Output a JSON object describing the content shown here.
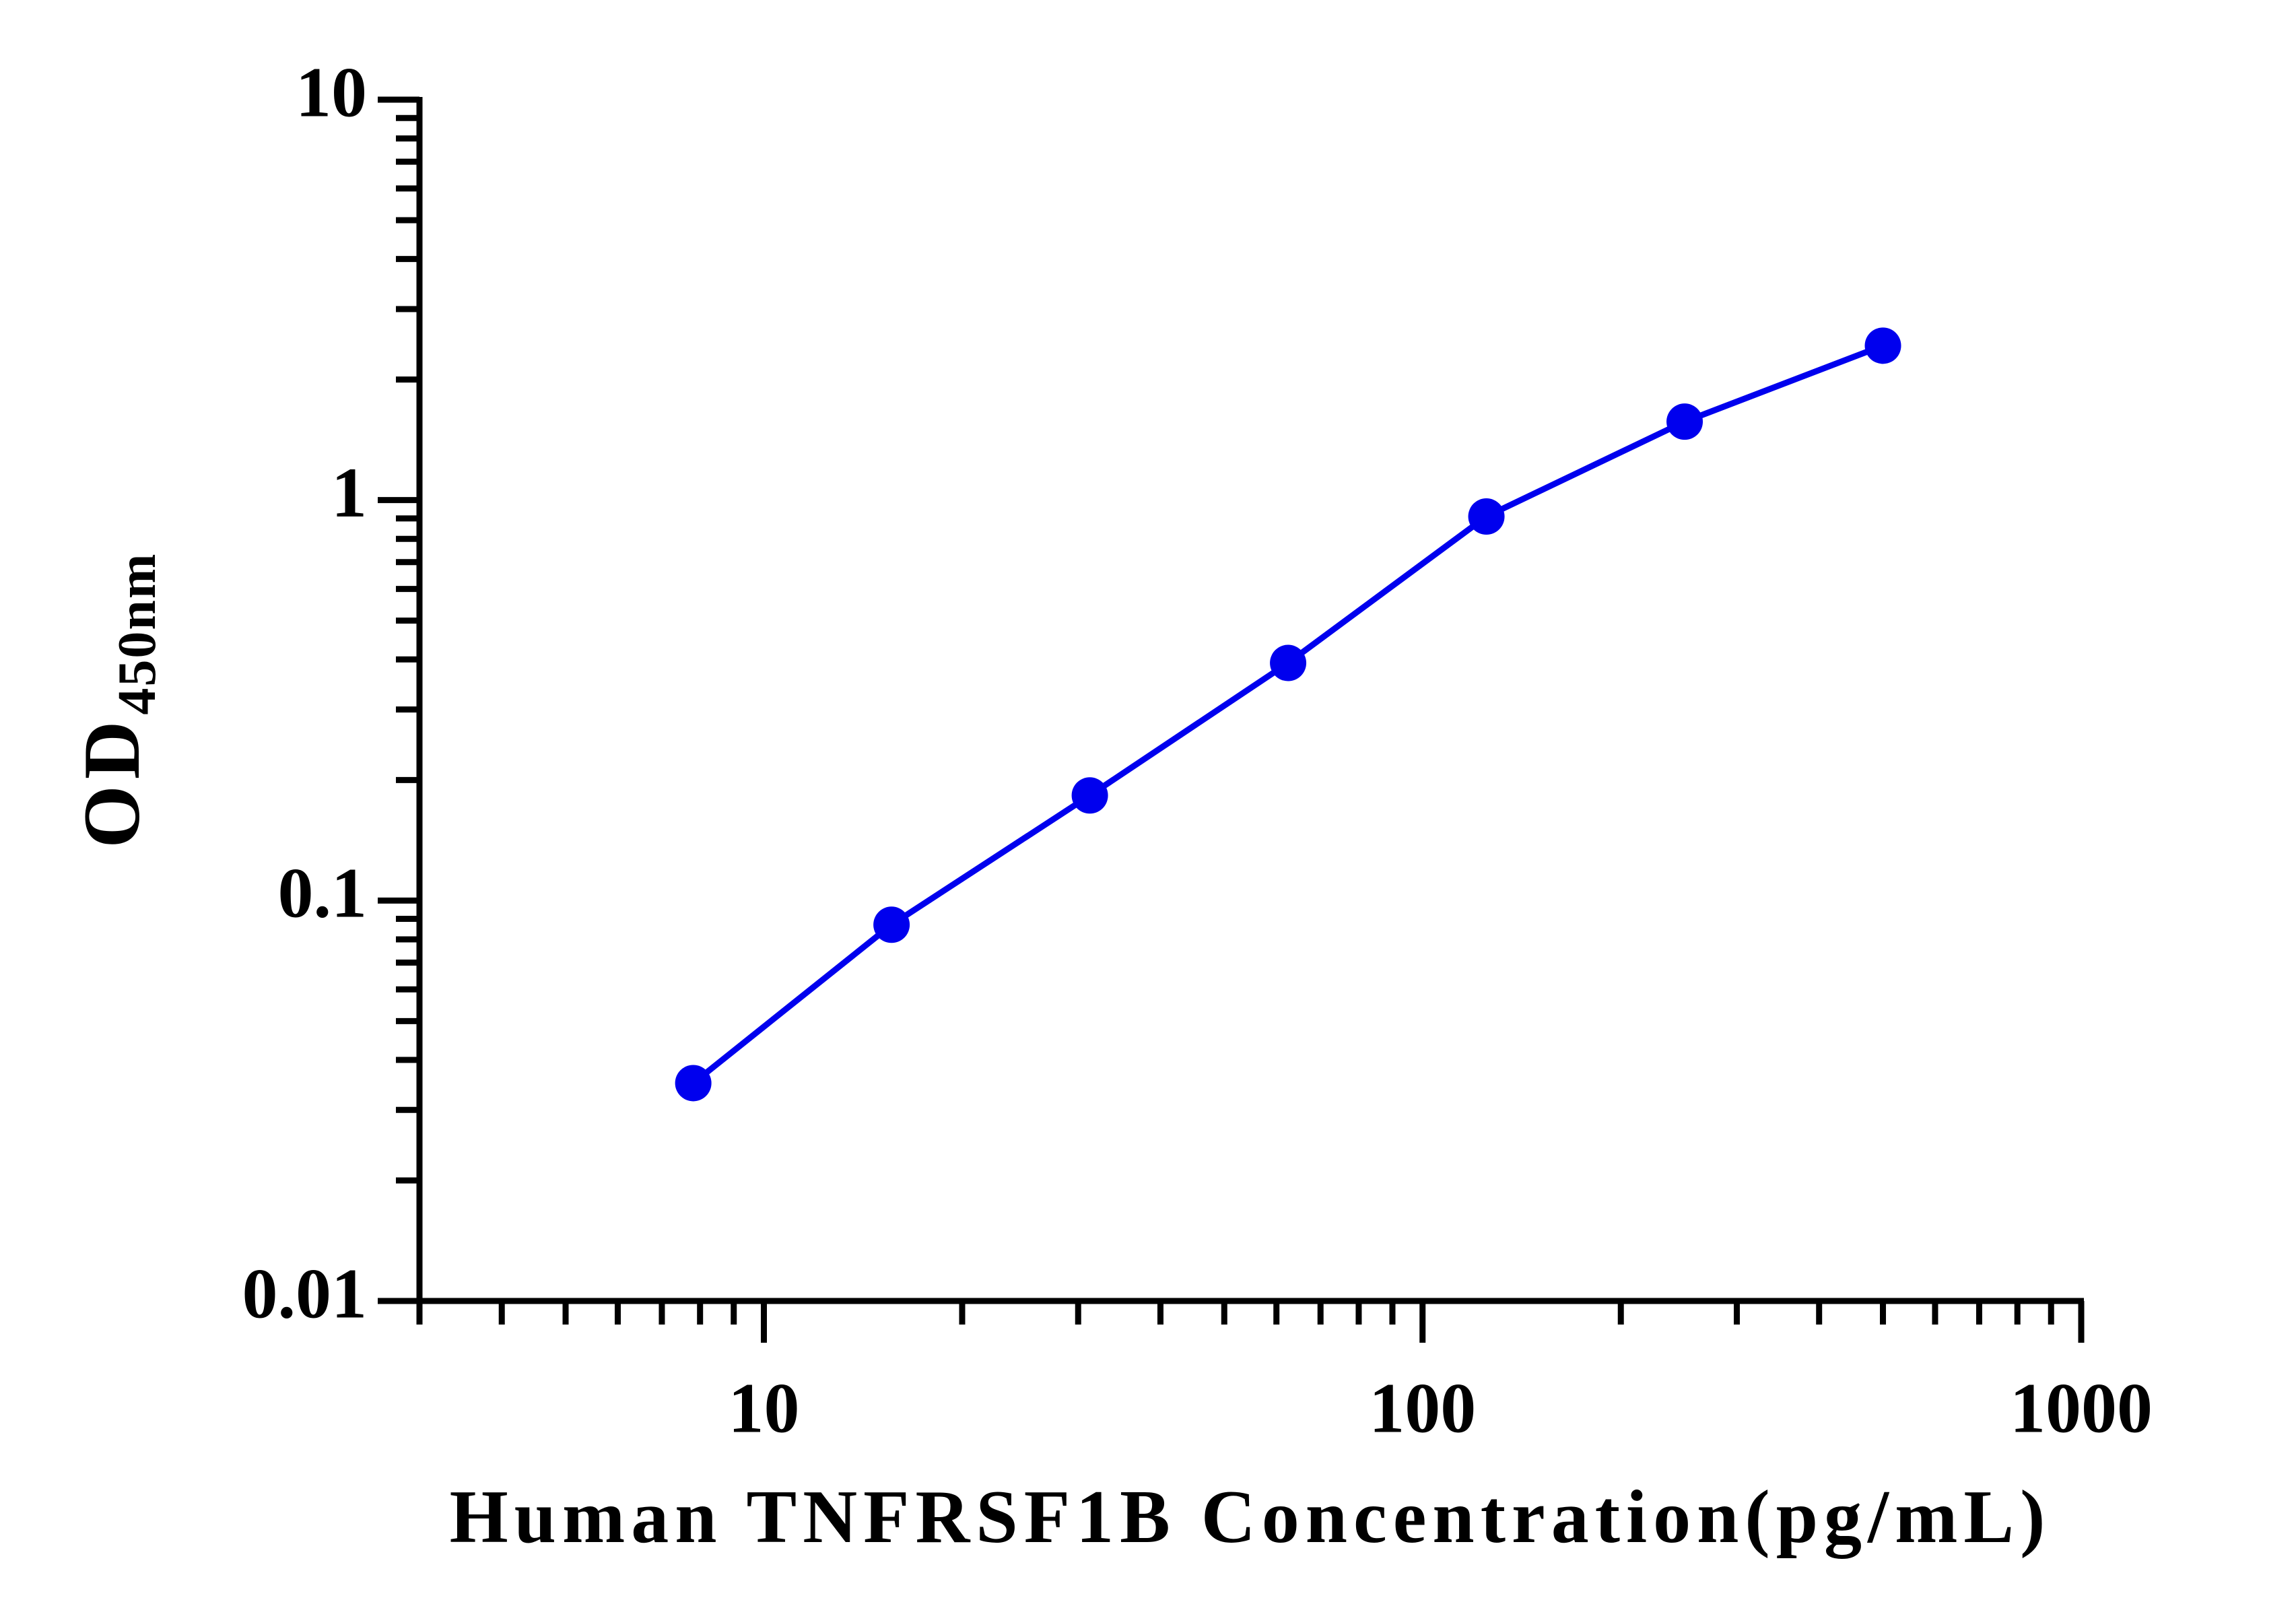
{
  "chart_data": {
    "type": "line",
    "xlabel": "Human TNFRSF1B Concentration(pg/mL)",
    "ylabel": {
      "text": "OD",
      "subscript": "450nm"
    },
    "x": [
      7.8125,
      15.625,
      31.25,
      62.5,
      125,
      250,
      500
    ],
    "series": [
      {
        "color": "#0000ee",
        "values": [
          0.035,
          0.087,
          0.183,
          0.392,
          0.91,
          1.57,
          2.43
        ]
      }
    ],
    "xscale": "log",
    "yscale": "log",
    "xlim": [
      3,
      1000
    ],
    "ylim": [
      0.01,
      10
    ],
    "xticks": [
      10,
      100,
      1000
    ],
    "xminorticks": [
      3,
      4,
      5,
      6,
      7,
      8,
      9,
      20,
      30,
      40,
      50,
      60,
      70,
      80,
      90,
      200,
      300,
      400,
      500,
      600,
      700,
      800,
      900
    ],
    "yticks": [
      0.01,
      0.1,
      1,
      10
    ],
    "yminorticks": [
      0.02,
      0.03,
      0.04,
      0.05,
      0.06,
      0.07,
      0.08,
      0.09,
      0.2,
      0.3,
      0.4,
      0.5,
      0.6,
      0.7,
      0.8,
      0.9,
      2,
      3,
      4,
      5,
      6,
      7,
      8,
      9
    ],
    "grid": false,
    "markers": true
  }
}
